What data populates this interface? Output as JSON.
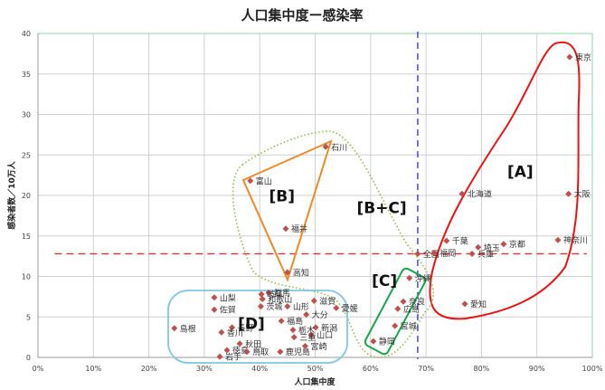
{
  "chart_data": {
    "type": "scatter",
    "title": "人口集中度ー感染率",
    "xlabel": "人口集中度",
    "ylabel": "感染者数／10万人",
    "xlim": [
      0,
      100
    ],
    "ylim": [
      0,
      40
    ],
    "x_ticks": [
      "0%",
      "10%",
      "20%",
      "30%",
      "40%",
      "50%",
      "60%",
      "70%",
      "80%",
      "90%",
      "100%"
    ],
    "y_ticks": [
      "0",
      "5",
      "10",
      "15",
      "20",
      "25",
      "30",
      "35",
      "40"
    ],
    "grid": true,
    "reference_lines": {
      "national_avg_y": 12.8,
      "national_avg_x": 68.5,
      "horizontal_color": "#e83030",
      "vertical_color": "#2a2ae8"
    },
    "marker_color": "#c0504d",
    "points": [
      {
        "name": "東京",
        "x": 95.9,
        "y": 37.1
      },
      {
        "name": "大阪",
        "x": 95.7,
        "y": 20.2
      },
      {
        "name": "北海道",
        "x": 76.5,
        "y": 20.2
      },
      {
        "name": "神奈川",
        "x": 93.8,
        "y": 14.5
      },
      {
        "name": "千葉",
        "x": 73.7,
        "y": 14.4
      },
      {
        "name": "京都",
        "x": 84.0,
        "y": 14.0
      },
      {
        "name": "埼玉",
        "x": 79.4,
        "y": 13.6
      },
      {
        "name": "全国",
        "x": 68.5,
        "y": 12.8
      },
      {
        "name": "福岡",
        "x": 71.5,
        "y": 12.9
      },
      {
        "name": "兵庫",
        "x": 78.3,
        "y": 12.8
      },
      {
        "name": "愛知",
        "x": 77.0,
        "y": 6.6
      },
      {
        "name": "石川",
        "x": 51.9,
        "y": 26.0
      },
      {
        "name": "富山",
        "x": 38.3,
        "y": 21.8
      },
      {
        "name": "福井",
        "x": 44.7,
        "y": 15.9
      },
      {
        "name": "高知",
        "x": 45.0,
        "y": 10.5
      },
      {
        "name": "沖縄",
        "x": 67.0,
        "y": 9.8
      },
      {
        "name": "奈良",
        "x": 65.9,
        "y": 6.9
      },
      {
        "name": "広島",
        "x": 64.9,
        "y": 6.0
      },
      {
        "name": "宮城",
        "x": 64.4,
        "y": 3.9
      },
      {
        "name": "静岡",
        "x": 60.5,
        "y": 2.0
      },
      {
        "name": "滋賀",
        "x": 49.8,
        "y": 7.0
      },
      {
        "name": "愛媛",
        "x": 53.8,
        "y": 6.1
      },
      {
        "name": "山形",
        "x": 45.0,
        "y": 6.3
      },
      {
        "name": "大分",
        "x": 48.4,
        "y": 5.3
      },
      {
        "name": "福島",
        "x": 43.9,
        "y": 4.5
      },
      {
        "name": "新潟",
        "x": 50.1,
        "y": 3.7
      },
      {
        "name": "栃木",
        "x": 46.0,
        "y": 3.4
      },
      {
        "name": "山口",
        "x": 49.3,
        "y": 2.8
      },
      {
        "name": "三重",
        "x": 46.2,
        "y": 2.5
      },
      {
        "name": "群馬",
        "x": 41.6,
        "y": 8.0
      },
      {
        "name": "岐阜",
        "x": 40.3,
        "y": 7.8
      },
      {
        "name": "和歌山",
        "x": 40.5,
        "y": 7.2
      },
      {
        "name": "茨城",
        "x": 40.2,
        "y": 6.3
      },
      {
        "name": "山梨",
        "x": 31.8,
        "y": 7.4
      },
      {
        "name": "佐賀",
        "x": 31.8,
        "y": 5.9
      },
      {
        "name": "長野",
        "x": 35.0,
        "y": 3.7
      },
      {
        "name": "香川",
        "x": 33.1,
        "y": 3.1
      },
      {
        "name": "島根",
        "x": 24.6,
        "y": 3.6
      },
      {
        "name": "秋田",
        "x": 36.4,
        "y": 1.7
      },
      {
        "name": "徳島",
        "x": 34.1,
        "y": 0.9
      },
      {
        "name": "岩手",
        "x": 32.8,
        "y": 0.1
      },
      {
        "name": "鳥取",
        "x": 37.7,
        "y": 0.7
      },
      {
        "name": "鹿児島",
        "x": 43.7,
        "y": 0.7
      },
      {
        "name": "宮崎",
        "x": 48.2,
        "y": 1.4
      }
    ],
    "annotations": [
      {
        "label": "[A]",
        "x": 87,
        "y": 22.3,
        "shape": "red ellipse"
      },
      {
        "label": "[B]",
        "x": 44,
        "y": 19.3,
        "shape": "orange triangle"
      },
      {
        "label": "[B+C]",
        "x": 62,
        "y": 17.8,
        "shape": "green dotted outline"
      },
      {
        "label": "[C]",
        "x": 62.5,
        "y": 8.8,
        "shape": "green rounded rectangle"
      },
      {
        "label": "[D]",
        "x": 38.5,
        "y": 3.5,
        "shape": "light-blue rounded rectangle"
      }
    ]
  }
}
